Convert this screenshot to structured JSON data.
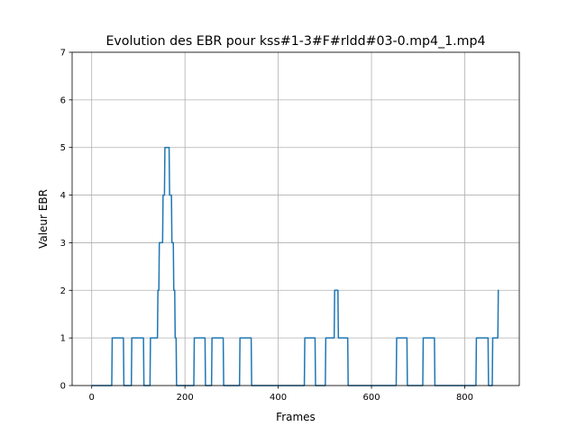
{
  "chart_data": {
    "type": "line",
    "title": "Evolution des EBR pour kss#1-3#F#rldd#03-0.mp4_1.mp4",
    "xlabel": "Frames",
    "ylabel": "Valeur EBR",
    "xlim": [
      -42,
      917
    ],
    "ylim": [
      0,
      7
    ],
    "xticks": [
      0,
      200,
      400,
      600,
      800
    ],
    "yticks": [
      0,
      1,
      2,
      3,
      4,
      5,
      6,
      7
    ],
    "grid": true,
    "line_color": "#1f77b4",
    "series": [
      {
        "name": "",
        "x": [
          0,
          43,
          44,
          68,
          69,
          85,
          86,
          111,
          112,
          125,
          126,
          141,
          142,
          144,
          145,
          146,
          147,
          152,
          153,
          156,
          157,
          166,
          167,
          171,
          172,
          175,
          176,
          178,
          179,
          181,
          182,
          219,
          220,
          243,
          244,
          257,
          258,
          282,
          283,
          317,
          318,
          342,
          343,
          456,
          457,
          479,
          480,
          501,
          502,
          520,
          521,
          528,
          529,
          549,
          550,
          653,
          654,
          676,
          677,
          710,
          711,
          735,
          736,
          824,
          825,
          850,
          851,
          859,
          860,
          871,
          872,
          873
        ],
        "y": [
          0,
          0,
          1,
          1,
          0,
          0,
          1,
          1,
          0,
          0,
          1,
          1,
          2,
          2,
          3,
          3,
          3,
          3,
          4,
          4,
          5,
          5,
          4,
          4,
          3,
          3,
          2,
          2,
          1,
          1,
          0,
          0,
          1,
          1,
          0,
          0,
          1,
          1,
          0,
          0,
          1,
          1,
          0,
          0,
          1,
          1,
          0,
          0,
          1,
          1,
          2,
          2,
          1,
          1,
          0,
          0,
          1,
          1,
          0,
          0,
          1,
          1,
          0,
          0,
          1,
          1,
          0,
          0,
          1,
          1,
          2,
          2
        ]
      }
    ]
  }
}
